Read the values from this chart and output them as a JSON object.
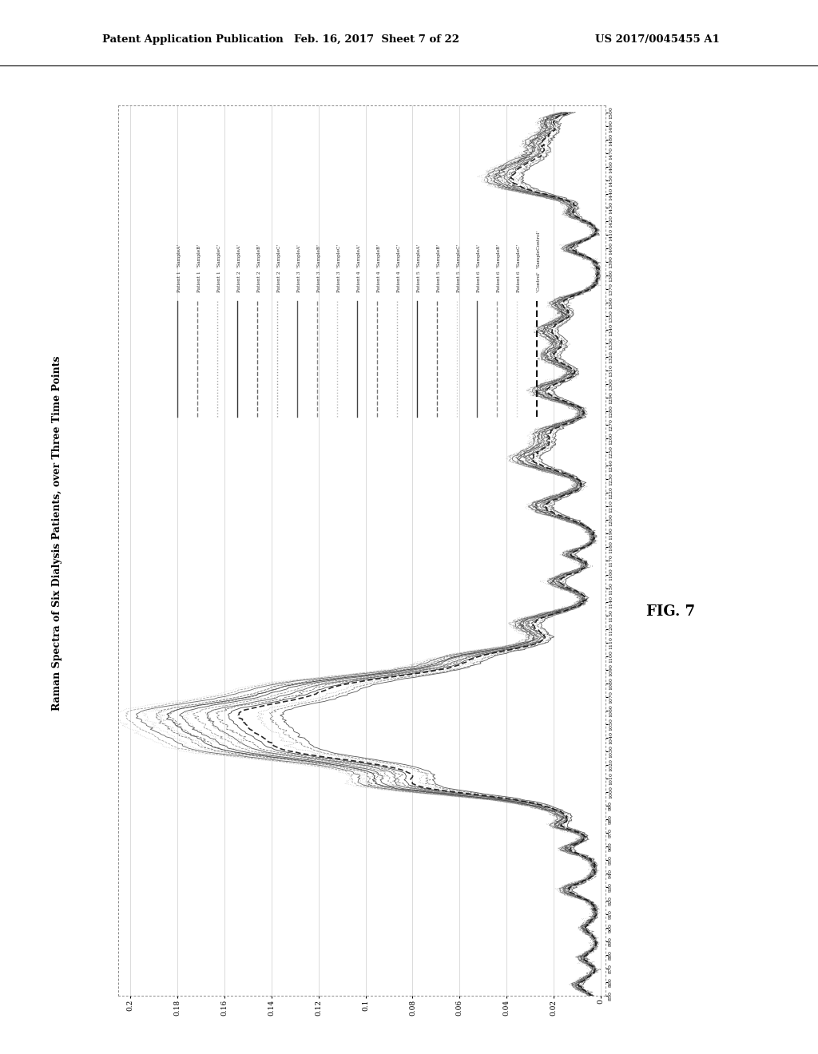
{
  "title": "Raman Spectra of Six Dialysis Patients, over Three Time Points",
  "header_left": "Patent Application Publication",
  "header_mid": "Feb. 16, 2017  Sheet 7 of 22",
  "header_right": "US 2017/0045455 A1",
  "fig_label": "FIG. 7",
  "x_ticks": [
    0,
    0.02,
    0.04,
    0.06,
    0.08,
    0.1,
    0.12,
    0.14,
    0.16,
    0.18,
    0.2
  ],
  "y_min": 850,
  "y_max": 1500,
  "background_color": "#ffffff",
  "plot_bg_color": "#ffffff",
  "legend_labels": [
    "Patient 1  'SampleA'",
    "Patient 1  'SampleB'",
    "Patient 1  'SampleC'",
    "Patient 2  'SampleA'",
    "Patient 2  'SampleB'",
    "Patient 2  'SampleC'",
    "Patient 3  'SampleA'",
    "Patient 3  'SampleB'",
    "Patient 3  'SampleC'",
    "Patient 4  'SampleA'",
    "Patient 4  'SampleB'",
    "Patient 4  'SampleC'",
    "Patient 5  'SampleA'",
    "Patient 5  'SampleB'",
    "Patient 5  'SampleC'",
    "Patient 6  'SampleA'",
    "Patient 6  'SampleB'",
    "Patient 6  'SampleC'",
    "'Control'  'SampleControl'"
  ]
}
